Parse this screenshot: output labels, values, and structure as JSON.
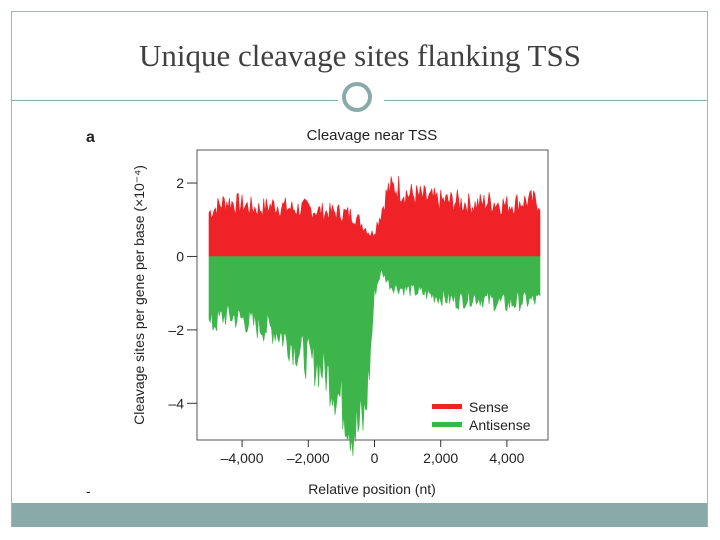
{
  "slide": {
    "title": "Unique cleavage sites flanking TSS"
  },
  "figure": {
    "panel_label": "a",
    "footnote_mark": "-"
  },
  "colors": {
    "sense": "#ee2227",
    "antisense": "#3db54a",
    "frame": "#8aa9a9",
    "title": "#404040"
  },
  "chart_data": {
    "type": "area",
    "title": "Cleavage near TSS",
    "xlabel": "Relative position (nt)",
    "ylabel": "Cleavage sites per gene per base (×10⁻⁴)",
    "xlim": [
      -5000,
      5000
    ],
    "ylim": [
      -5,
      2.9
    ],
    "x_ticks": [
      -4000,
      -2000,
      0,
      2000,
      4000
    ],
    "x_tick_labels": [
      "–4,000",
      "–2,000",
      "0",
      "2,000",
      "4,000"
    ],
    "y_ticks": [
      2,
      0,
      -2,
      -4
    ],
    "y_tick_labels": [
      "2",
      "0",
      "–2",
      "–4"
    ],
    "legend": {
      "position": "bottom-right",
      "entries": [
        "Sense",
        "Antisense"
      ]
    },
    "grid": false,
    "series": [
      {
        "name": "Sense",
        "x": [
          -5000,
          -4500,
          -4000,
          -3500,
          -3000,
          -2500,
          -2000,
          -1500,
          -1000,
          -600,
          -300,
          -100,
          0,
          200,
          400,
          700,
          1000,
          1500,
          2000,
          2500,
          3000,
          3500,
          4000,
          4500,
          5000
        ],
        "values": [
          1.2,
          1.5,
          1.4,
          1.3,
          1.4,
          1.3,
          1.3,
          1.2,
          1.2,
          1.1,
          0.8,
          0.6,
          0.7,
          1.2,
          1.8,
          1.9,
          1.7,
          1.6,
          1.5,
          1.5,
          1.4,
          1.5,
          1.4,
          1.5,
          1.5
        ]
      },
      {
        "name": "Antisense",
        "x": [
          -5000,
          -4500,
          -4000,
          -3500,
          -3000,
          -2500,
          -2000,
          -1500,
          -1200,
          -900,
          -700,
          -500,
          -300,
          -150,
          0,
          200,
          500,
          1000,
          1500,
          2000,
          2500,
          3000,
          3500,
          4000,
          4500,
          5000
        ],
        "values": [
          -1.9,
          -1.6,
          -1.7,
          -1.9,
          -2.0,
          -2.4,
          -2.8,
          -3.1,
          -3.6,
          -4.1,
          -4.6,
          -4.7,
          -4.4,
          -3.0,
          -1.0,
          -0.4,
          -0.8,
          -0.9,
          -1.0,
          -1.1,
          -1.2,
          -1.1,
          -1.2,
          -1.3,
          -1.2,
          -1.2
        ]
      }
    ]
  }
}
